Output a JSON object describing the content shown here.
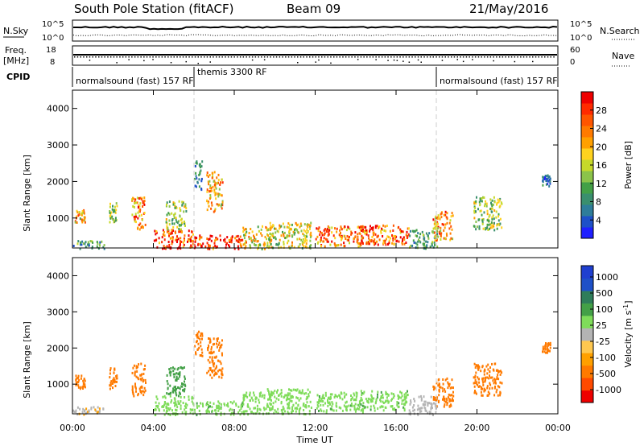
{
  "header": {
    "station": "South Pole Station (fitACF)",
    "beam": "Beam 09",
    "date": "21/May/2016"
  },
  "top_panels": {
    "nsky_label": "N.Sky",
    "nsky_ticks": [
      "10^5",
      "10^0"
    ],
    "nsearch_label": "N.Search",
    "nsearch_ticks": [
      "10^5",
      "10^0"
    ],
    "freq_label": "Freq.",
    "freq_unit": "[MHz]",
    "freq_ticks": [
      "18",
      "8"
    ],
    "nave_label": "Nave",
    "nave_ticks": [
      "60",
      "0"
    ],
    "cpid_label": "CPID",
    "cpid_segments": [
      {
        "label": "normalsound (fast) 157 RF",
        "start": "00:00",
        "end": "06:00"
      },
      {
        "label": "themis 3300 RF",
        "start": "06:00",
        "end": "18:00"
      },
      {
        "label": "normalsound (fast) 157 RF",
        "start": "18:00",
        "end": "24:00"
      }
    ]
  },
  "chart_data": [
    {
      "type": "heatmap",
      "title": "",
      "xlabel": "",
      "ylabel": "Slant Range [km]",
      "x_ticks": [
        "00:00",
        "04:00",
        "08:00",
        "12:00",
        "16:00",
        "20:00",
        "00:00"
      ],
      "y_ticks": [
        "1000",
        "2000",
        "3000",
        "4000"
      ],
      "xlim": [
        0,
        24
      ],
      "ylim": [
        180,
        4500
      ],
      "colorbar": {
        "label": "Power [dB]",
        "ticks": [
          "4",
          "8",
          "12",
          "16",
          "20",
          "24",
          "28"
        ],
        "range": [
          0,
          32
        ],
        "colors": [
          "#1f1fff",
          "#1e50c8",
          "#2e7d9a",
          "#3a8f6e",
          "#43a047",
          "#8bc34a",
          "#c6d92a",
          "#ffd21f",
          "#ffa000",
          "#ff7a00",
          "#ff5500",
          "#ff2a00",
          "#ee0000"
        ]
      },
      "blobs": [
        {
          "t0": 0.0,
          "t1": 1.6,
          "r0": 180,
          "r1": 400,
          "value": 10
        },
        {
          "t0": 0.1,
          "t1": 0.6,
          "r0": 900,
          "r1": 1300,
          "value": 20
        },
        {
          "t0": 1.8,
          "t1": 2.2,
          "r0": 900,
          "r1": 1500,
          "value": 14
        },
        {
          "t0": 2.9,
          "t1": 3.6,
          "r0": 700,
          "r1": 1600,
          "value": 24
        },
        {
          "t0": 4.0,
          "t1": 6.0,
          "r0": 180,
          "r1": 700,
          "value": 28
        },
        {
          "t0": 4.6,
          "t1": 5.6,
          "r0": 700,
          "r1": 1500,
          "value": 14
        },
        {
          "t0": 6.0,
          "t1": 8.4,
          "r0": 180,
          "r1": 550,
          "value": 30
        },
        {
          "t0": 6.6,
          "t1": 7.4,
          "r0": 1200,
          "r1": 2300,
          "value": 20
        },
        {
          "t0": 6.0,
          "t1": 6.4,
          "r0": 1800,
          "r1": 2600,
          "value": 8
        },
        {
          "t0": 8.4,
          "t1": 9.8,
          "r0": 180,
          "r1": 800,
          "value": 18
        },
        {
          "t0": 9.6,
          "t1": 11.8,
          "r0": 200,
          "r1": 900,
          "value": 16
        },
        {
          "t0": 12.0,
          "t1": 14.4,
          "r0": 250,
          "r1": 800,
          "value": 24
        },
        {
          "t0": 14.2,
          "t1": 16.6,
          "r0": 300,
          "r1": 850,
          "value": 26
        },
        {
          "t0": 16.6,
          "t1": 18.0,
          "r0": 180,
          "r1": 700,
          "value": 10
        },
        {
          "t0": 17.8,
          "t1": 18.8,
          "r0": 400,
          "r1": 1200,
          "value": 22
        },
        {
          "t0": 19.8,
          "t1": 21.2,
          "r0": 700,
          "r1": 1600,
          "value": 14
        },
        {
          "t0": 23.2,
          "t1": 23.6,
          "r0": 1900,
          "r1": 2200,
          "value": 6
        }
      ]
    },
    {
      "type": "heatmap",
      "title": "",
      "xlabel": "Time UT",
      "ylabel": "Slant Range [km]",
      "x_ticks": [
        "00:00",
        "04:00",
        "08:00",
        "12:00",
        "16:00",
        "20:00",
        "00:00"
      ],
      "y_ticks": [
        "1000",
        "2000",
        "3000",
        "4000"
      ],
      "xlim": [
        0,
        24
      ],
      "ylim": [
        180,
        4500
      ],
      "colorbar": {
        "label": "Velocity [m s",
        "label_sup": "-1",
        "label_end": "]",
        "ticks": [
          "-1000",
          "-500",
          "-100",
          "-25",
          "25",
          "100",
          "500",
          "1000"
        ],
        "colors": [
          "#ee0000",
          "#ff4a00",
          "#ff7a00",
          "#ffa000",
          "#ffc850",
          "#b4b4b4",
          "#7fdc5a",
          "#43a047",
          "#2e7d5a",
          "#1e50c8",
          "#1f3fd0"
        ]
      },
      "blobs": [
        {
          "t0": 0.0,
          "t1": 1.6,
          "r0": 180,
          "r1": 400,
          "value": -20
        },
        {
          "t0": 0.1,
          "t1": 0.6,
          "r0": 900,
          "r1": 1300,
          "value": -200
        },
        {
          "t0": 1.8,
          "t1": 2.2,
          "r0": 900,
          "r1": 1500,
          "value": -200
        },
        {
          "t0": 2.9,
          "t1": 3.6,
          "r0": 700,
          "r1": 1600,
          "value": -250
        },
        {
          "t0": 4.0,
          "t1": 6.0,
          "r0": 180,
          "r1": 700,
          "value": 60
        },
        {
          "t0": 4.6,
          "t1": 5.6,
          "r0": 700,
          "r1": 1500,
          "value": 300
        },
        {
          "t0": 6.0,
          "t1": 8.4,
          "r0": 180,
          "r1": 550,
          "value": 80
        },
        {
          "t0": 6.6,
          "t1": 7.4,
          "r0": 1200,
          "r1": 2300,
          "value": -300
        },
        {
          "t0": 6.0,
          "t1": 6.4,
          "r0": 1800,
          "r1": 2600,
          "value": -150
        },
        {
          "t0": 8.4,
          "t1": 9.8,
          "r0": 180,
          "r1": 800,
          "value": 70
        },
        {
          "t0": 9.6,
          "t1": 11.8,
          "r0": 200,
          "r1": 900,
          "value": 70
        },
        {
          "t0": 12.0,
          "t1": 14.4,
          "r0": 250,
          "r1": 800,
          "value": 80
        },
        {
          "t0": 14.2,
          "t1": 16.6,
          "r0": 300,
          "r1": 850,
          "value": 80
        },
        {
          "t0": 16.6,
          "t1": 18.0,
          "r0": 180,
          "r1": 700,
          "value": 10
        },
        {
          "t0": 17.8,
          "t1": 18.8,
          "r0": 400,
          "r1": 1200,
          "value": -200
        },
        {
          "t0": 19.8,
          "t1": 21.2,
          "r0": 700,
          "r1": 1600,
          "value": -250
        },
        {
          "t0": 23.2,
          "t1": 23.6,
          "r0": 1900,
          "r1": 2200,
          "value": -200
        }
      ]
    }
  ]
}
